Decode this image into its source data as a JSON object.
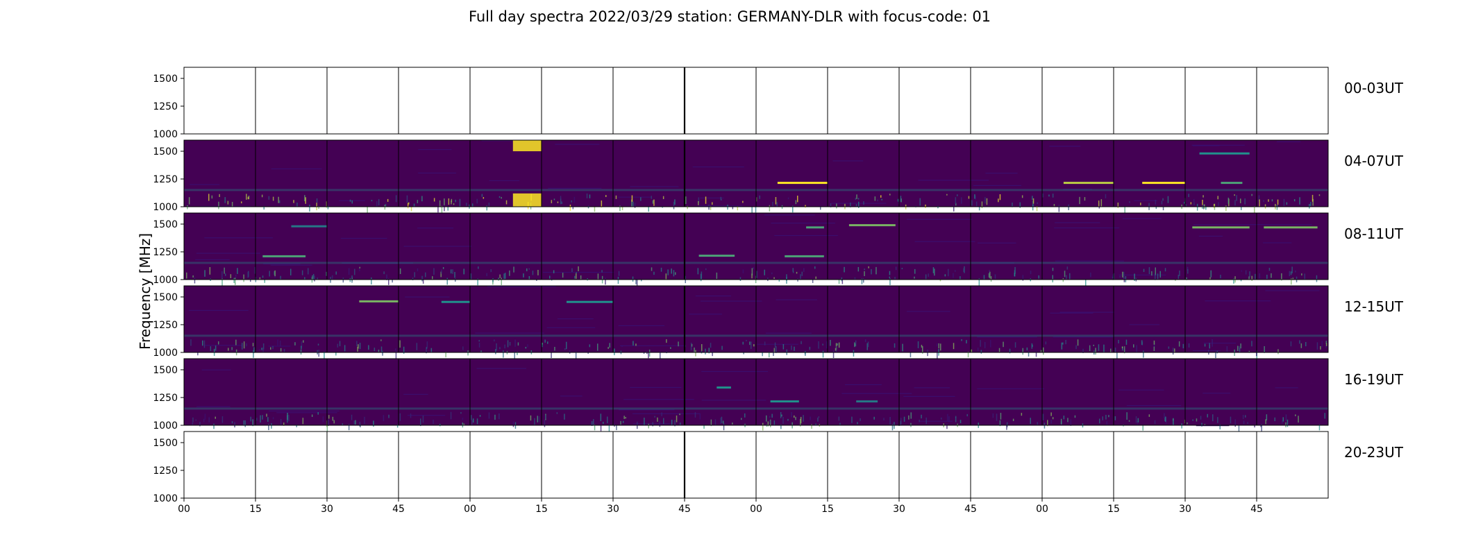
{
  "chart_data": {
    "type": "heatmap",
    "title": "Full day spectra 2022/03/29 station: GERMANY-DLR with focus-code: 01",
    "ylabel": "Frequency [MHz]",
    "xlabel": "",
    "y_ticks": [
      "1000",
      "1250",
      "1500"
    ],
    "ylim": [
      1000,
      1600
    ],
    "x_ticks": [
      "00",
      "15",
      "30",
      "45",
      "00",
      "15",
      "30",
      "45",
      "00",
      "15",
      "30",
      "45",
      "00",
      "15",
      "30",
      "45"
    ],
    "colormap": "viridis",
    "colors": {
      "background": "#440154",
      "low": "#3b0f70",
      "mid": "#21918c",
      "high": "#fde725"
    },
    "rows": [
      {
        "label": "00-03UT",
        "has_data": false,
        "segments": 16
      },
      {
        "label": "04-07UT",
        "has_data": true,
        "segments": 16,
        "features": [
          {
            "segment": 4,
            "f_start": 1500,
            "f_end": 1600,
            "intensity": 1.0
          },
          {
            "segment": 4,
            "f_start": 1000,
            "f_end": 1120,
            "intensity": 1.0
          },
          {
            "segment": 8,
            "freq": 1215,
            "t_start": 0.3,
            "t_end": 1.0,
            "intensity": 1.0
          },
          {
            "segment": 12,
            "freq": 1215,
            "t_start": 0.3,
            "t_end": 1.0,
            "intensity": 0.85
          },
          {
            "segment": 13,
            "freq": 1215,
            "t_start": 0.4,
            "t_end": 1.0,
            "intensity": 1.0
          },
          {
            "segment": 14,
            "freq": 1480,
            "t_start": 0.2,
            "t_end": 0.9,
            "intensity": 0.5
          },
          {
            "segment": 14,
            "freq": 1215,
            "t_start": 0.5,
            "t_end": 0.8,
            "intensity": 0.6
          }
        ]
      },
      {
        "label": "08-11UT",
        "has_data": true,
        "segments": 16,
        "features": [
          {
            "segment": 1,
            "freq": 1210,
            "t_start": 0.1,
            "t_end": 0.7,
            "intensity": 0.6
          },
          {
            "segment": 1,
            "freq": 1480,
            "t_start": 0.5,
            "t_end": 1.0,
            "intensity": 0.4
          },
          {
            "segment": 7,
            "freq": 1215,
            "t_start": 0.2,
            "t_end": 0.7,
            "intensity": 0.6
          },
          {
            "segment": 8,
            "freq": 1210,
            "t_start": 0.4,
            "t_end": 0.95,
            "intensity": 0.6
          },
          {
            "segment": 8,
            "freq": 1470,
            "t_start": 0.7,
            "t_end": 0.95,
            "intensity": 0.6
          },
          {
            "segment": 9,
            "freq": 1490,
            "t_start": 0.3,
            "t_end": 0.95,
            "intensity": 0.7
          },
          {
            "segment": 14,
            "freq": 1470,
            "t_start": 0.1,
            "t_end": 0.9,
            "intensity": 0.7
          },
          {
            "segment": 15,
            "freq": 1470,
            "t_start": 0.1,
            "t_end": 0.85,
            "intensity": 0.7
          }
        ]
      },
      {
        "label": "12-15UT",
        "has_data": true,
        "segments": 16,
        "features": [
          {
            "segment": 2,
            "freq": 1460,
            "t_start": 0.45,
            "t_end": 1.0,
            "intensity": 0.7
          },
          {
            "segment": 3,
            "freq": 1455,
            "t_start": 0.6,
            "t_end": 1.0,
            "intensity": 0.5
          },
          {
            "segment": 5,
            "freq": 1455,
            "t_start": 0.35,
            "t_end": 1.0,
            "intensity": 0.5
          }
        ]
      },
      {
        "label": "16-19UT",
        "has_data": true,
        "segments": 16,
        "features": [
          {
            "segment": 7,
            "freq": 1340,
            "t_start": 0.45,
            "t_end": 0.65,
            "intensity": 0.5
          },
          {
            "segment": 8,
            "freq": 1215,
            "t_start": 0.2,
            "t_end": 0.6,
            "intensity": 0.5
          },
          {
            "segment": 9,
            "freq": 1215,
            "t_start": 0.4,
            "t_end": 0.7,
            "intensity": 0.4
          }
        ]
      },
      {
        "label": "20-23UT",
        "has_data": false,
        "segments": 16
      }
    ]
  }
}
